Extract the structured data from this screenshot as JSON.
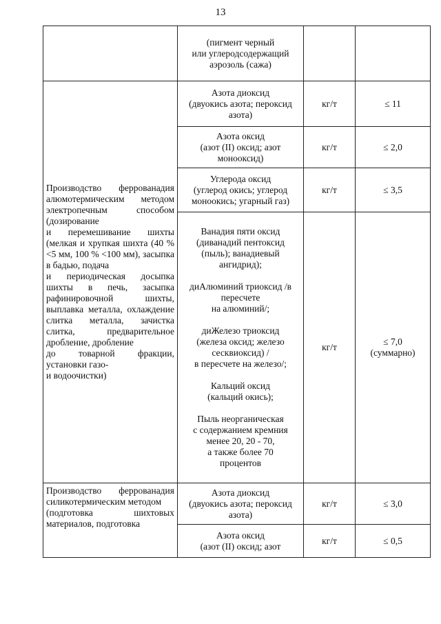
{
  "page_number": "13",
  "rows": [
    {
      "substance": "(пигмент черный\nили углеродсодержащий\nаэрозоль (сажа)",
      "unit": "",
      "value": ""
    },
    {
      "substance": "Азота диоксид\n(двуокись азота; пероксид\nазота)",
      "unit": "кг/т",
      "value": "≤ 11"
    },
    {
      "substance": "Азота оксид\n(азот (II) оксид; азот\nмонооксид)",
      "unit": "кг/т",
      "value": "≤ 2,0"
    },
    {
      "substance": "Углерода оксид\n(углерод окись; углерод\nмоноокись; угарный газ)",
      "unit": "кг/т",
      "value": "≤ 3,5"
    },
    {
      "substance": "Ванадия пяти оксид\n(диванадий пентоксид\n(пыль); ванадиевый\nангидрид);\n\nдиАлюминий триоксид /в\nпересчете\nна алюминий/;\n\nдиЖелезо триоксид\n(железа оксид; железо\nсесквиоксид) /\nв пересчете на железо/;\n\nКальций оксид\n(кальций окись);\n\nПыль неорганическая\nс содержанием кремния\nменее 20, 20 - 70,\nа также более 70\nпроцентов",
      "unit": "кг/т",
      "value": "≤ 7,0\n(суммарно)"
    },
    {
      "substance": "Азота диоксид\n(двуокись азота; пероксид\nазота)",
      "unit": "кг/т",
      "value": "≤ 3,0"
    },
    {
      "substance": "Азота оксид\n(азот (II) оксид; азот",
      "unit": "кг/т",
      "value": "≤ 0,5"
    }
  ],
  "process_1": "Производство феррованадия алюмотермическим методом электропечным способом (дозирование\nи перемешивание шихты (мелкая и хрупкая шихта (40 % <5 мм, 100 % <100 мм), засыпка в бадью, подача\nи периодическая досыпка шихты в печь, засыпка рафинировочной шихты, выплавка металла, охлаждение слитка металла, зачистка слитка, предварительное дробление, дробление\nдо товарной фракции, установки газо-\nи водоочистки)",
  "process_2": "Производство феррованадия силикотермическим методом\n(подготовка шихтовых материалов, подготовка"
}
